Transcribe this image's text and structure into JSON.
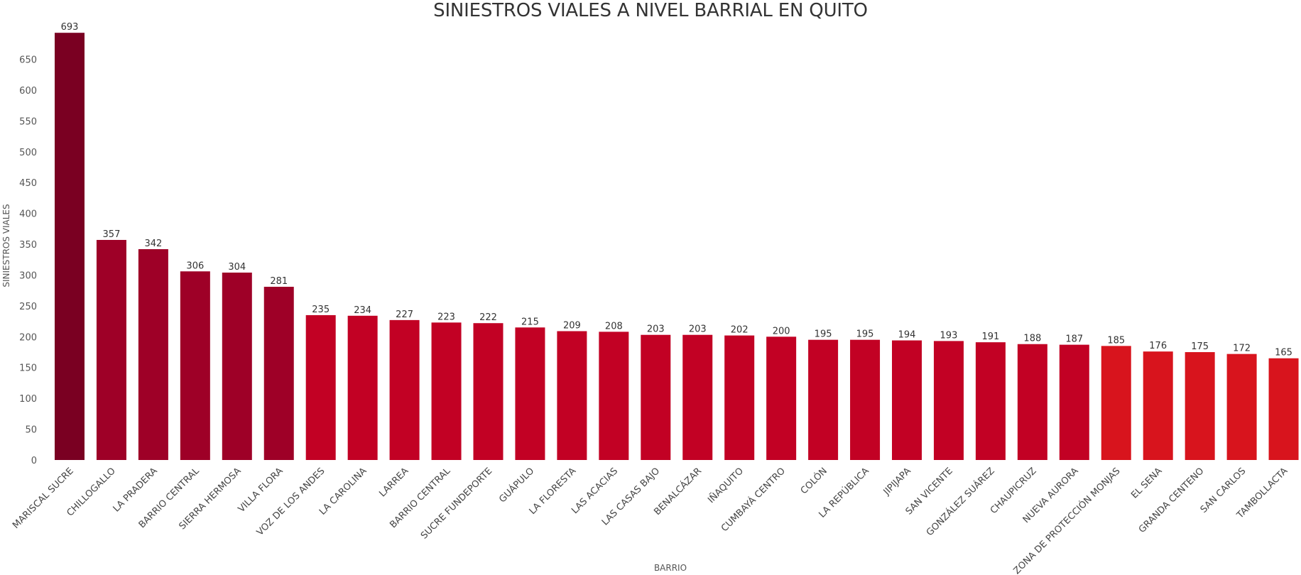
{
  "chart_data": {
    "type": "bar",
    "title": "SINIESTROS VIALES A NIVEL BARRIAL EN QUITO",
    "xlabel": "BARRIO",
    "ylabel": "SINIESTROS VIALES",
    "ylim": [
      0,
      700
    ],
    "yticks": [
      0,
      50,
      100,
      150,
      200,
      250,
      300,
      350,
      400,
      450,
      500,
      550,
      600,
      650
    ],
    "grid": false,
    "legend": "none",
    "categories": [
      "MARISCAL SUCRE",
      "CHILLOGALLO",
      "LA PRADERA",
      "BARRIO CENTRAL",
      "SIERRA HERMOSA",
      "VILLA FLORA",
      "VOZ DE LOS ANDES",
      "LA CAROLINA",
      "LARREA",
      "BARRIO CENTRAL",
      "SUCRE FUNDEPORTE",
      "GUÁPULO",
      "LA FLORESTA",
      "LAS ACACIAS",
      "LAS CASAS BAJO",
      "BENALCÁZAR",
      "IÑAQUITO",
      "CUMBAYÁ CENTRO",
      "COLÓN",
      "LA REPÚBLICA",
      "JIPIJAPA",
      "SAN VICENTE",
      "GONZÁLEZ SUÁREZ",
      "CHAUPICRUZ",
      "NUEVA AURORA",
      "ZONA DE PROTECCIÓN MONJAS",
      "EL SENA",
      "GRANDA CENTENO",
      "SAN CARLOS",
      "TAMBOLLACTA"
    ],
    "values": [
      693,
      357,
      342,
      306,
      304,
      281,
      235,
      234,
      227,
      223,
      222,
      215,
      209,
      208,
      203,
      203,
      202,
      200,
      195,
      195,
      194,
      193,
      191,
      188,
      187,
      185,
      176,
      175,
      172,
      165
    ],
    "color_scale": {
      "high": "#7a0022",
      "mid_high": "#9e0027",
      "mid": "#c20124",
      "low": "#d8141d"
    }
  }
}
